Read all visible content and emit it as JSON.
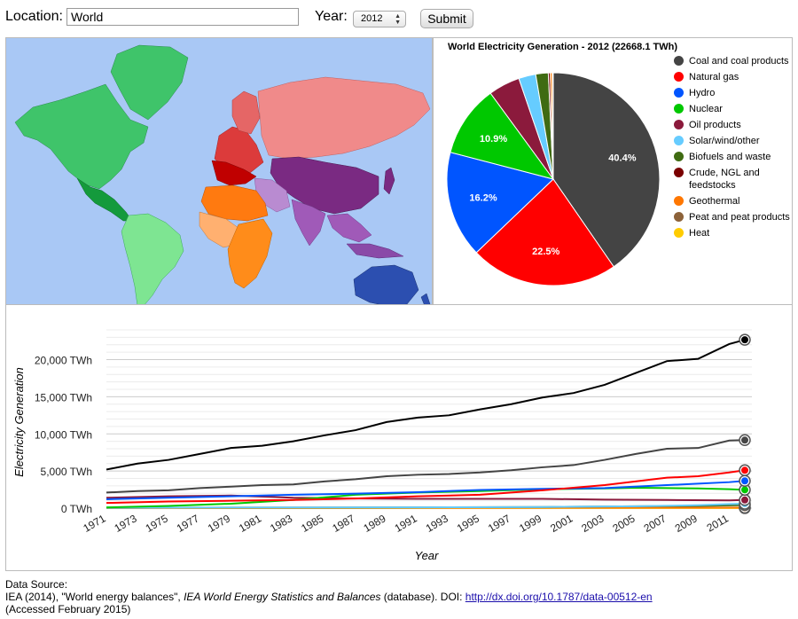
{
  "form": {
    "location_label": "Location:",
    "location_value": "World",
    "year_label": "Year:",
    "year_value": "2012",
    "submit_label": "Submit"
  },
  "chart_data": [
    {
      "type": "pie",
      "title": "World Electricity Generation - 2012 (22668.1 TWh)",
      "legend_position": "right",
      "slices": [
        {
          "name": "Coal and coal products",
          "value": 40.4,
          "color": "#444444",
          "label": "40.4%"
        },
        {
          "name": "Natural gas",
          "value": 22.5,
          "color": "#ff0000",
          "label": "22.5%"
        },
        {
          "name": "Hydro",
          "value": 16.2,
          "color": "#0055ff",
          "label": "16.2%"
        },
        {
          "name": "Nuclear",
          "value": 10.9,
          "color": "#00c800",
          "label": "10.9%"
        },
        {
          "name": "Oil products",
          "value": 4.8,
          "color": "#8b1a3c",
          "label": ""
        },
        {
          "name": "Solar/wind/other",
          "value": 2.6,
          "color": "#66ccff",
          "label": ""
        },
        {
          "name": "Biofuels and waste",
          "value": 1.9,
          "color": "#3f6b12",
          "label": ""
        },
        {
          "name": "Crude, NGL and feedstocks",
          "value": 0.3,
          "color": "#7a0000",
          "label": ""
        },
        {
          "name": "Geothermal",
          "value": 0.3,
          "color": "#ff7700",
          "label": ""
        },
        {
          "name": "Peat and peat products",
          "value": 0.1,
          "color": "#8c6239",
          "label": ""
        },
        {
          "name": "Heat",
          "value": 0.05,
          "color": "#ffcc00",
          "label": ""
        }
      ]
    },
    {
      "type": "line",
      "xlabel": "Year",
      "ylabel": "Electricity Generation",
      "ylim": [
        0,
        24000
      ],
      "yticks": [
        0,
        5000,
        10000,
        15000,
        20000
      ],
      "ytick_labels": [
        "0 TWh",
        "5,000 TWh",
        "10,000 TWh",
        "15,000 TWh",
        "20,000 TWh"
      ],
      "xlim": [
        1971,
        2012
      ],
      "xtick_labels": [
        "1971",
        "1973",
        "1975",
        "1977",
        "1979",
        "1981",
        "1983",
        "1985",
        "1987",
        "1989",
        "1991",
        "1993",
        "1995",
        "1997",
        "1999",
        "2001",
        "2003",
        "2005",
        "2007",
        "2009",
        "2011"
      ],
      "grid": true,
      "series": [
        {
          "color": "#000000",
          "x": [
            1971,
            1973,
            1975,
            1977,
            1979,
            1981,
            1983,
            1985,
            1987,
            1989,
            1991,
            1993,
            1995,
            1997,
            1999,
            2001,
            2003,
            2005,
            2007,
            2009,
            2011,
            2012
          ],
          "y": [
            5200,
            6000,
            6500,
            7300,
            8100,
            8400,
            9000,
            9800,
            10500,
            11600,
            12200,
            12500,
            13300,
            14000,
            14900,
            15500,
            16600,
            18200,
            19800,
            20100,
            22100,
            22668
          ]
        },
        {
          "color": "#444444",
          "x": [
            1971,
            1973,
            1975,
            1977,
            1979,
            1981,
            1983,
            1985,
            1987,
            1989,
            1991,
            1993,
            1995,
            1997,
            1999,
            2001,
            2003,
            2005,
            2007,
            2009,
            2011,
            2012
          ],
          "y": [
            2100,
            2300,
            2400,
            2700,
            2900,
            3100,
            3200,
            3600,
            3900,
            4300,
            4500,
            4600,
            4800,
            5100,
            5500,
            5800,
            6500,
            7300,
            8000,
            8100,
            9100,
            9160
          ]
        },
        {
          "color": "#ff0000",
          "x": [
            1971,
            1975,
            1979,
            1983,
            1987,
            1991,
            1995,
            1999,
            2003,
            2007,
            2009,
            2011,
            2012
          ],
          "y": [
            700,
            900,
            1000,
            1100,
            1300,
            1600,
            1800,
            2400,
            3100,
            4100,
            4300,
            4800,
            5100
          ]
        },
        {
          "color": "#0055ff",
          "x": [
            1971,
            1975,
            1979,
            1983,
            1987,
            1991,
            1995,
            1999,
            2003,
            2007,
            2009,
            2011,
            2012
          ],
          "y": [
            1200,
            1400,
            1600,
            1800,
            1950,
            2150,
            2450,
            2600,
            2700,
            3100,
            3300,
            3500,
            3670
          ]
        },
        {
          "color": "#00c800",
          "x": [
            1971,
            1975,
            1979,
            1983,
            1987,
            1991,
            1995,
            1999,
            2003,
            2005,
            2007,
            2009,
            2011,
            2012
          ],
          "y": [
            100,
            300,
            600,
            1100,
            1800,
            2100,
            2300,
            2550,
            2650,
            2750,
            2700,
            2650,
            2550,
            2470
          ]
        },
        {
          "color": "#8b1a3c",
          "x": [
            1971,
            1975,
            1979,
            1983,
            1987,
            1991,
            1995,
            1999,
            2003,
            2007,
            2011,
            2012
          ],
          "y": [
            1400,
            1600,
            1700,
            1400,
            1300,
            1250,
            1250,
            1250,
            1150,
            1100,
            1050,
            1100
          ]
        },
        {
          "color": "#66ccff",
          "x": [
            1971,
            1991,
            1999,
            2005,
            2009,
            2011,
            2012
          ],
          "y": [
            50,
            100,
            150,
            250,
            400,
            550,
            600
          ]
        },
        {
          "color": "#3f6b12",
          "x": [
            1971,
            1991,
            1999,
            2005,
            2009,
            2011,
            2012
          ],
          "y": [
            50,
            100,
            150,
            250,
            300,
            380,
            420
          ]
        },
        {
          "color": "#ff7700",
          "x": [
            1971,
            1991,
            2012
          ],
          "y": [
            20,
            40,
            70
          ]
        },
        {
          "color": "#ffcc00",
          "x": [
            1971,
            1991,
            2012
          ],
          "y": [
            5,
            8,
            10
          ]
        }
      ]
    }
  ],
  "source": {
    "heading": "Data Source:",
    "citation_a": "IEA (2014), \"World energy balances\", ",
    "citation_b": "IEA World Energy Statistics and Balances",
    "citation_c": " (database). DOI: ",
    "link": "http://dx.doi.org/10.1787/data-00512-en",
    "accessed": "(Accessed February 2015)"
  }
}
